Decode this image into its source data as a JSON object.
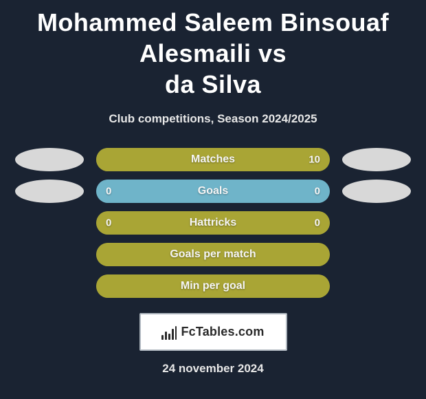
{
  "title_line1": "Mohammed Saleem Binsouaf Alesmaili vs",
  "title_line2": "da Silva",
  "subtitle": "Club competitions, Season 2024/2025",
  "date": "24 november 2024",
  "brand": "FcTables.com",
  "colors": {
    "background": "#1a2332",
    "bar_primary": "#a9a535",
    "bar_secondary": "#6fb4c9",
    "ellipse": "#d8d8d8",
    "text": "#f5f5f5"
  },
  "stats": [
    {
      "label": "Matches",
      "left_value": "",
      "right_value": "10",
      "left_pct": 0,
      "right_pct": 100,
      "bg_color": "#a9a535",
      "left_fill": "#a9a535",
      "right_fill": "#a9a535",
      "show_ellipses": true
    },
    {
      "label": "Goals",
      "left_value": "0",
      "right_value": "0",
      "left_pct": 50,
      "right_pct": 50,
      "bg_color": "#6fb4c9",
      "left_fill": "#6fb4c9",
      "right_fill": "#6fb4c9",
      "show_ellipses": true
    },
    {
      "label": "Hattricks",
      "left_value": "0",
      "right_value": "0",
      "left_pct": 50,
      "right_pct": 50,
      "bg_color": "#a9a535",
      "left_fill": "#a9a535",
      "right_fill": "#a9a535",
      "show_ellipses": false
    },
    {
      "label": "Goals per match",
      "left_value": "",
      "right_value": "",
      "left_pct": 50,
      "right_pct": 50,
      "bg_color": "#a9a535",
      "left_fill": "#a9a535",
      "right_fill": "#a9a535",
      "show_ellipses": false
    },
    {
      "label": "Min per goal",
      "left_value": "",
      "right_value": "",
      "left_pct": 50,
      "right_pct": 50,
      "bg_color": "#a9a535",
      "left_fill": "#a9a535",
      "right_fill": "#a9a535",
      "show_ellipses": false
    }
  ]
}
